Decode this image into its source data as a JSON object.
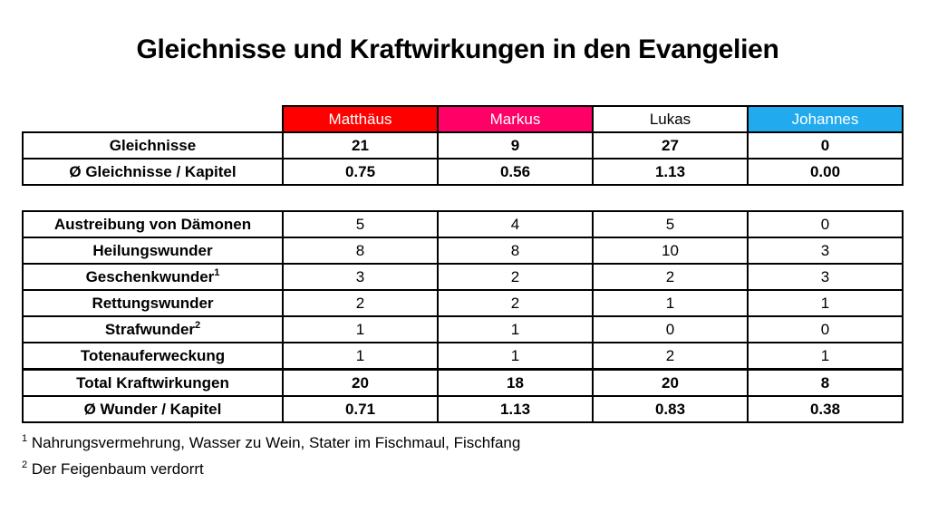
{
  "title": "Gleichnisse und Kraftwirkungen in den Evangelien",
  "colors": {
    "matthaeus": "#ff0000",
    "markus": "#ff0066",
    "lukas": "#ffffff",
    "johannes": "#22aaee"
  },
  "headers": [
    "Matthäus",
    "Markus",
    "Lukas",
    "Johannes"
  ],
  "parables": {
    "rows": [
      {
        "label": "Gleichnisse",
        "values": [
          "21",
          "9",
          "27",
          "0"
        ]
      },
      {
        "label": "Ø Gleichnisse / Kapitel",
        "values": [
          "0.75",
          "0.56",
          "1.13",
          "0.00"
        ]
      }
    ]
  },
  "miracles": {
    "rows": [
      {
        "label": "Austreibung von Dämonen",
        "sup": "",
        "values": [
          "5",
          "4",
          "5",
          "0"
        ]
      },
      {
        "label": "Heilungswunder",
        "sup": "",
        "values": [
          "8",
          "8",
          "10",
          "3"
        ]
      },
      {
        "label": "Geschenkwunder",
        "sup": "1",
        "values": [
          "3",
          "2",
          "2",
          "3"
        ]
      },
      {
        "label": "Rettungswunder",
        "sup": "",
        "values": [
          "2",
          "2",
          "1",
          "1"
        ]
      },
      {
        "label": "Strafwunder",
        "sup": "2",
        "values": [
          "1",
          "1",
          "0",
          "0"
        ]
      },
      {
        "label": "Totenauferweckung",
        "sup": "",
        "values": [
          "1",
          "1",
          "2",
          "1"
        ]
      }
    ],
    "total": {
      "label": "Total Kraftwirkungen",
      "values": [
        "20",
        "18",
        "20",
        "8"
      ]
    },
    "per_chapter": {
      "label": "Ø Wunder / Kapitel",
      "values": [
        "0.71",
        "1.13",
        "0.83",
        "0.38"
      ]
    }
  },
  "footnotes": [
    {
      "mark": "1",
      "text": " Nahrungsvermehrung, Wasser zu Wein, Stater im Fischmaul, Fischfang"
    },
    {
      "mark": "2",
      "text": " Der Feigenbaum verdorrt"
    }
  ]
}
